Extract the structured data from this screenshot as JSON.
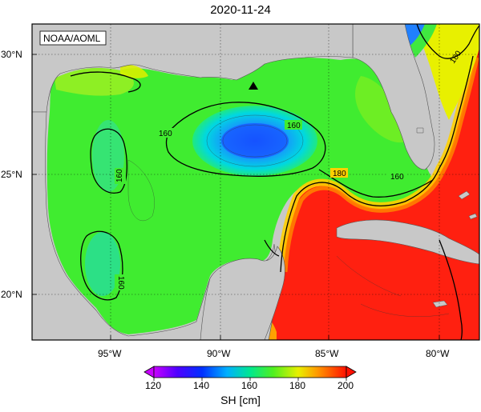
{
  "title": "2020-11-24",
  "credit": "NOAA/AOML",
  "units_label": "SH [cm]",
  "lat_labels": [
    "30°N",
    "25°N",
    "20°N"
  ],
  "lon_labels": [
    "95°W",
    "90°W",
    "85°W",
    "80°W"
  ],
  "contour_labels": [
    "160",
    "160",
    "160",
    "160",
    "160",
    "180",
    "180",
    "180"
  ],
  "colorbar": {
    "ticks": [
      "120",
      "140",
      "160",
      "180",
      "200"
    ],
    "min": 120,
    "max": 200,
    "colors": [
      "#c800ff",
      "#0020ff",
      "#00a8ff",
      "#00f0e0",
      "#00e060",
      "#60f020",
      "#d8f000",
      "#ffd000",
      "#ff7000",
      "#ff1800"
    ]
  },
  "colors": {
    "land": "#c8c8c8",
    "field_high": "#ff2000",
    "field_mid": "#30e830",
    "field_low": "#1a5cff"
  },
  "marker": "triangle-marker"
}
